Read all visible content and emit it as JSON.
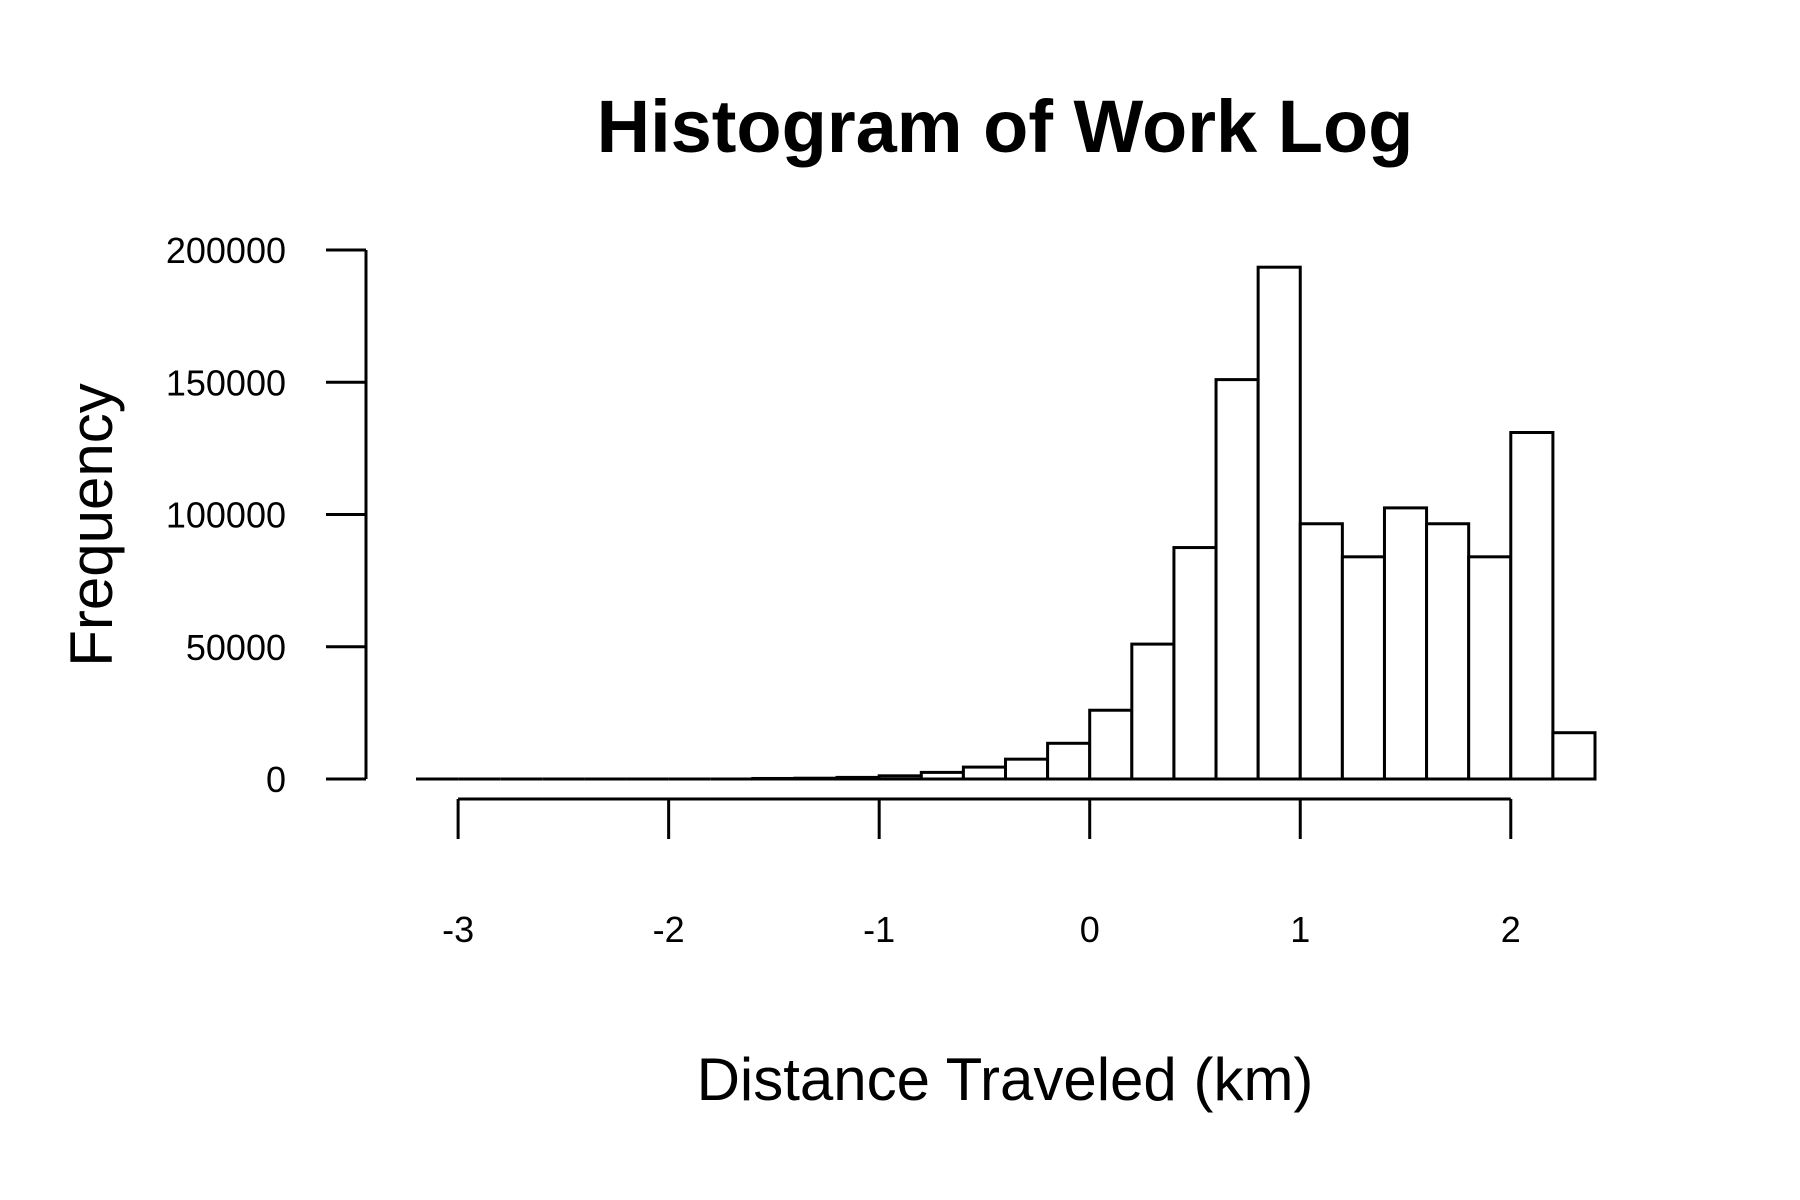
{
  "chart_data": {
    "type": "bar",
    "title": "Histogram of Work Log",
    "xlabel": "Distance Traveled (km)",
    "ylabel": "Frequency",
    "bin_width": 0.2,
    "bins": [
      {
        "x0": -3.2,
        "x1": -3.0,
        "count": 0
      },
      {
        "x0": -3.0,
        "x1": -2.8,
        "count": 0
      },
      {
        "x0": -2.8,
        "x1": -2.6,
        "count": 0
      },
      {
        "x0": -2.6,
        "x1": -2.4,
        "count": 0
      },
      {
        "x0": -2.4,
        "x1": -2.2,
        "count": 0
      },
      {
        "x0": -2.2,
        "x1": -2.0,
        "count": 0
      },
      {
        "x0": -2.0,
        "x1": -1.8,
        "count": 0
      },
      {
        "x0": -1.8,
        "x1": -1.6,
        "count": 0
      },
      {
        "x0": -1.6,
        "x1": -1.4,
        "count": 200
      },
      {
        "x0": -1.4,
        "x1": -1.2,
        "count": 300
      },
      {
        "x0": -1.2,
        "x1": -1.0,
        "count": 600
      },
      {
        "x0": -1.0,
        "x1": -0.8,
        "count": 1200
      },
      {
        "x0": -0.8,
        "x1": -0.6,
        "count": 2500
      },
      {
        "x0": -0.6,
        "x1": -0.4,
        "count": 4500
      },
      {
        "x0": -0.4,
        "x1": -0.2,
        "count": 7500
      },
      {
        "x0": -0.2,
        "x1": 0.0,
        "count": 13500
      },
      {
        "x0": 0.0,
        "x1": 0.2,
        "count": 26000
      },
      {
        "x0": 0.2,
        "x1": 0.4,
        "count": 51000
      },
      {
        "x0": 0.4,
        "x1": 0.6,
        "count": 87500
      },
      {
        "x0": 0.6,
        "x1": 0.8,
        "count": 151000
      },
      {
        "x0": 0.8,
        "x1": 1.0,
        "count": 193500
      },
      {
        "x0": 1.0,
        "x1": 1.2,
        "count": 96500
      },
      {
        "x0": 1.2,
        "x1": 1.4,
        "count": 84000
      },
      {
        "x0": 1.4,
        "x1": 1.6,
        "count": 102500
      },
      {
        "x0": 1.6,
        "x1": 1.8,
        "count": 96500
      },
      {
        "x0": 1.8,
        "x1": 2.0,
        "count": 84000
      },
      {
        "x0": 2.0,
        "x1": 2.2,
        "count": 131000
      },
      {
        "x0": 2.2,
        "x1": 2.4,
        "count": 17500
      }
    ],
    "xlim": [
      -3.2,
      2.4
    ],
    "ylim": [
      0,
      200000
    ],
    "xticks": [
      -3,
      -2,
      -1,
      0,
      1,
      2
    ],
    "xtick_labels": [
      "-3",
      "-2",
      "-1",
      "0",
      "1",
      "2"
    ],
    "yticks": [
      0,
      50000,
      100000,
      150000,
      200000
    ],
    "ytick_labels": [
      "0",
      "50000",
      "100000",
      "150000",
      "200000"
    ],
    "grid": false,
    "legend": "none",
    "colors": {
      "bar_fill": "#ffffff",
      "bar_stroke": "#000000",
      "axis": "#000000",
      "background": "#ffffff"
    }
  }
}
